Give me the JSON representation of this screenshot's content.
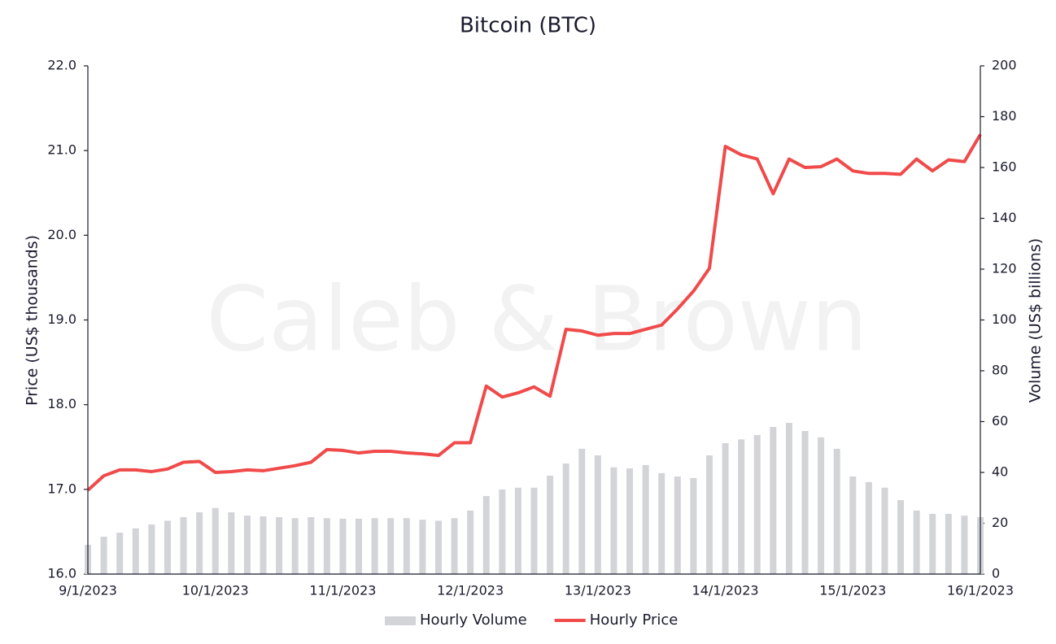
{
  "chart_data": {
    "type": "line",
    "title": "Bitcoin (BTC)",
    "watermark": "Caleb & Brown",
    "y_label": "Price (US$ thousands)",
    "y2_label": "Volume (US$ billions)",
    "categories": [
      "9/1/2023",
      null,
      null,
      null,
      null,
      null,
      null,
      null,
      "10/1/2023",
      null,
      null,
      null,
      null,
      null,
      null,
      null,
      "11/1/2023",
      null,
      null,
      null,
      null,
      null,
      null,
      null,
      "12/1/2023",
      null,
      null,
      null,
      null,
      null,
      null,
      null,
      "13/1/2023",
      null,
      null,
      null,
      null,
      null,
      null,
      null,
      "14/1/2023",
      null,
      null,
      null,
      null,
      null,
      null,
      null,
      "15/1/2023",
      null,
      null,
      null,
      null,
      null,
      null,
      null,
      "16/1/2023"
    ],
    "series": [
      {
        "name": "Hourly Volume",
        "type": "bar",
        "axis": "y2",
        "color": "#d3d4d8",
        "values": [
          11.5,
          14.7,
          16.3,
          18,
          19.5,
          21,
          22.4,
          24.3,
          26,
          24.3,
          23,
          22.7,
          22.4,
          22,
          22.4,
          22,
          21.8,
          21.8,
          22,
          22,
          22,
          21.4,
          21,
          22,
          25,
          30.7,
          33.3,
          34,
          34,
          38.7,
          43.5,
          49.3,
          46.7,
          42,
          41.6,
          42.9,
          39.7,
          38.4,
          37.8,
          46.7,
          51.5,
          53,
          54.7,
          57.9,
          59.5,
          56.3,
          53.8,
          49.3,
          38.4,
          36.2,
          34,
          29.1,
          25,
          23.7,
          23.7,
          23,
          22.4
        ]
      },
      {
        "name": "Hourly Price",
        "type": "line",
        "color": "#f04a4a",
        "values": [
          16.99,
          17.16,
          17.23,
          17.23,
          17.21,
          17.24,
          17.32,
          17.33,
          17.2,
          17.21,
          17.23,
          17.22,
          17.25,
          17.28,
          17.32,
          17.47,
          17.46,
          17.43,
          17.45,
          17.45,
          17.43,
          17.42,
          17.4,
          17.55,
          17.55,
          18.22,
          18.09,
          18.14,
          18.21,
          18.1,
          18.89,
          18.87,
          18.82,
          18.84,
          18.84,
          18.89,
          18.94,
          19.13,
          19.34,
          19.61,
          21.05,
          20.95,
          20.9,
          20.49,
          20.9,
          20.8,
          20.81,
          20.9,
          20.76,
          20.73,
          20.73,
          20.72,
          20.9,
          20.76,
          20.89,
          20.87,
          21.19
        ]
      }
    ],
    "ylim": [
      16,
      22
    ],
    "yticks": [
      {
        "value": 16,
        "label": "16.0"
      },
      {
        "value": 17,
        "label": "17.0"
      },
      {
        "value": 18,
        "label": "18.0"
      },
      {
        "value": 19,
        "label": "19.0"
      },
      {
        "value": 20,
        "label": "20.0"
      },
      {
        "value": 21,
        "label": "21.0"
      },
      {
        "value": 22,
        "label": "22.0"
      }
    ],
    "y2lim": [
      0,
      200
    ],
    "y2ticks": [
      0,
      20,
      40,
      60,
      80,
      100,
      120,
      140,
      160,
      180,
      200
    ],
    "grid": false,
    "legend": "bottom"
  }
}
